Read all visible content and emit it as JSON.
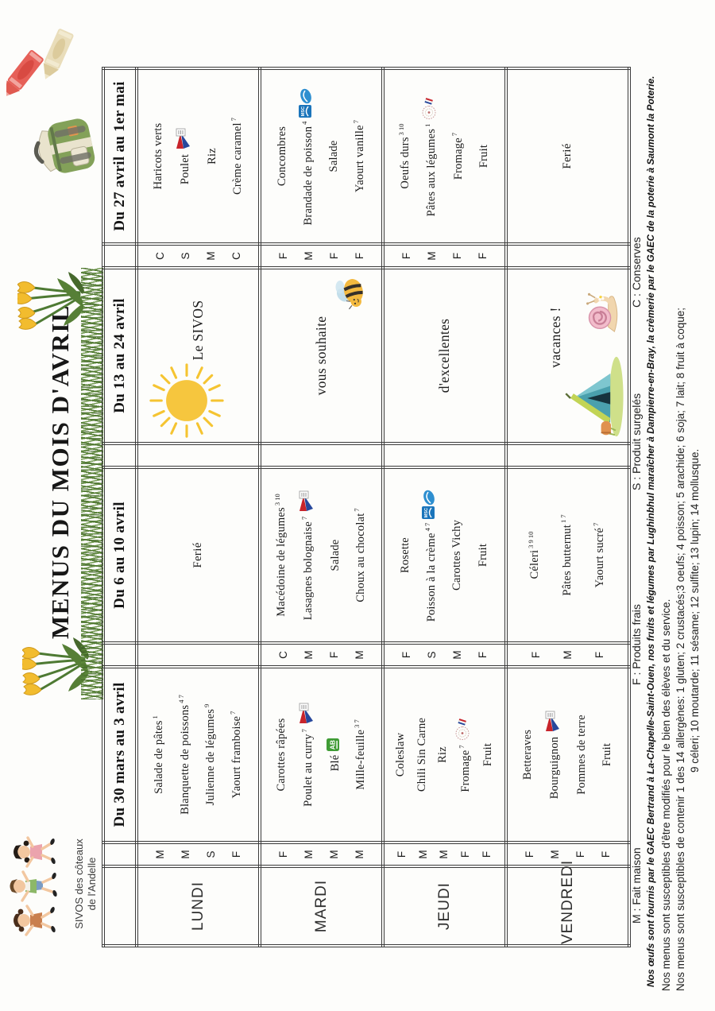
{
  "title": "MENUS DU MOIS D'AVRIL",
  "org": {
    "line1": "SIVOS des côteaux",
    "line2": "de l'Andelle"
  },
  "decorations": {
    "top_left": [
      "kids-icon"
    ],
    "title_row": [
      "tulips-icon",
      "grass-border",
      "tulips-icon"
    ],
    "top_right": [
      "backpack-icon",
      "crayons-icon"
    ],
    "cell_art": [
      "sun-icon",
      "bee-icon",
      "tent-icon",
      "snail-icon"
    ],
    "line_logos": [
      "viandes-de-france-logo",
      "msc-logo",
      "agriculture-bio-logo",
      "france-stamp-logo"
    ]
  },
  "table": {
    "week_headers": [
      "Du 30 mars au 3 avril",
      "Du 6 au 10 avril",
      "Du 13 au 24 avril",
      "Du 27 avril au 1er mai"
    ],
    "rows": [
      {
        "day": "LUNDI",
        "cells": [
          {
            "type": "menu",
            "lines": [
              {
                "letter": "M",
                "text": "Salade de pâtes",
                "sup": "1"
              },
              {
                "letter": "M",
                "text": "Blanquette de poissons",
                "sup": "4 7"
              },
              {
                "letter": "S",
                "text": "Julienne de légumes",
                "sup": "9"
              },
              {
                "letter": "F",
                "text": "Yaourt framboise",
                "sup": "7"
              }
            ]
          },
          {
            "type": "message",
            "text": "Ferié",
            "small": true
          },
          {
            "type": "message",
            "text": "Le SIVOS",
            "art": [
              "sun"
            ]
          },
          {
            "type": "menu",
            "lines": [
              {
                "letter": "C",
                "text": "Haricots verts"
              },
              {
                "letter": "S",
                "text": "Poulet",
                "logo": "viandes-de-france"
              },
              {
                "letter": "M",
                "text": "Riz"
              },
              {
                "letter": "C",
                "text": "Crème caramel",
                "sup": "7"
              }
            ]
          }
        ]
      },
      {
        "day": "MARDI",
        "cells": [
          {
            "type": "menu",
            "lines": [
              {
                "letter": "F",
                "text": "Carottes râpées"
              },
              {
                "letter": "M",
                "text": "Poulet au curry",
                "sup": "7",
                "logo": "viandes-de-france"
              },
              {
                "letter": "M",
                "text": "Blé",
                "logo": "agriculture-bio"
              },
              {
                "letter": "M",
                "text": "Mille-feuille",
                "sup": "3 7"
              }
            ]
          },
          {
            "type": "menu",
            "lines": [
              {
                "letter": "C",
                "text": "Macédoine de légumes",
                "sup": "3 10"
              },
              {
                "letter": "M",
                "text": "Lasagnes bolognaise",
                "sup": "7",
                "logo": "viandes-de-france"
              },
              {
                "letter": "F",
                "text": "Salade"
              },
              {
                "letter": "M",
                "text": "Choux au chocolat",
                "sup": "7"
              }
            ]
          },
          {
            "type": "message",
            "text": "vous souhaite",
            "art": [
              "bee"
            ]
          },
          {
            "type": "menu",
            "lines": [
              {
                "letter": "F",
                "text": "Concombres"
              },
              {
                "letter": "M",
                "text": "Brandade de poisson",
                "sup": "4",
                "logo": "msc"
              },
              {
                "letter": "F",
                "text": "Salade"
              },
              {
                "letter": "F",
                "text": "Yaourt vanille",
                "sup": "7"
              }
            ]
          }
        ]
      },
      {
        "day": "JEUDI",
        "cells": [
          {
            "type": "menu",
            "lines": [
              {
                "letter": "F",
                "text": "Coleslaw"
              },
              {
                "letter": "M",
                "text": "Chili Sin Carne"
              },
              {
                "letter": "M",
                "text": "Riz"
              },
              {
                "letter": "F",
                "text": "Fromage",
                "sup": "7",
                "logo": "france-stamp"
              },
              {
                "letter": "F",
                "text": "Fruit"
              }
            ]
          },
          {
            "type": "menu",
            "lines": [
              {
                "letter": "F",
                "text": "Rosette"
              },
              {
                "letter": "S",
                "text": "Poisson à la crème",
                "sup": "4 7",
                "logo": "msc"
              },
              {
                "letter": "M",
                "text": "Carottes Vichy"
              },
              {
                "letter": "F",
                "text": "Fruit"
              }
            ]
          },
          {
            "type": "message",
            "text": "d'excellentes"
          },
          {
            "type": "menu",
            "lines": [
              {
                "letter": "F",
                "text": "Oeufs durs",
                "sup": "3 10"
              },
              {
                "letter": "M",
                "text": "Pâtes aux légumes",
                "sup": "1",
                "logo": "france-stamp"
              },
              {
                "letter": "F",
                "text": "Fromage",
                "sup": "7"
              },
              {
                "letter": "F",
                "text": "Fruit"
              }
            ]
          }
        ]
      },
      {
        "day": "VENDREDI",
        "cells": [
          {
            "type": "menu",
            "lines": [
              {
                "letter": "F",
                "text": "Betteraves"
              },
              {
                "letter": "M",
                "text": "Bourguignon",
                "logo": "viandes-de-france"
              },
              {
                "letter": "F",
                "text": "Pommes de terre"
              },
              {
                "letter": "F",
                "text": "Fruit"
              }
            ]
          },
          {
            "type": "menu",
            "lines": [
              {
                "letter": "F",
                "text": "Céleri",
                "sup": "3 9 10"
              },
              {
                "letter": "M",
                "text": "Pâtes butternut",
                "sup": "1 7"
              },
              {
                "letter": "F",
                "text": "Yaourt sucré",
                "sup": "7"
              }
            ]
          },
          {
            "type": "message",
            "text": "vacances !",
            "art": [
              "tent",
              "snail"
            ]
          },
          {
            "type": "message",
            "text": "Ferié",
            "small": true
          }
        ]
      }
    ]
  },
  "footer": {
    "legend": [
      "M : Fait maison",
      "F : Produits frais",
      "S : Produit surgelés",
      "C : Conserves"
    ],
    "provenance": "Nos œufs sont fournis par le GAEC Bertrand à La-Chapelle-Saint-Ouen, nos fruits et légumes par Lughinbhul maraîcher à Dampierre-en-Bray, la crèmerie par le GAEC de la poterie à Saumont la Poterie.",
    "note": "Nos menus sont susceptibles d'être modifiés pour le bien des élèves et du service.",
    "allergens_line1": "Nos menus sont susceptibles de contenir 1 des 14 allergènes: 1 gluten; 2 crustacés;3 oeufs; 4 poisson; 5 arachide; 6 soja; 7 lait; 8 fruit à coque;",
    "allergens_line2": "9 céleri; 10 moutarde; 11 sésame; 12 sulfite; 13 lupin; 14 mollusque."
  }
}
